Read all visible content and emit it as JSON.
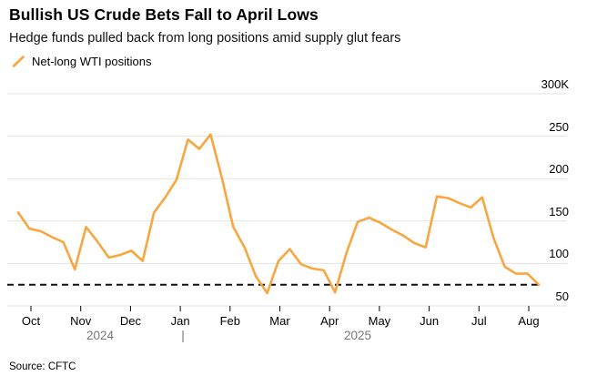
{
  "header": {
    "title": "Bullish US Crude Bets Fall to April Lows",
    "subtitle": "Hedge funds pulled back from long positions amid supply glut fears"
  },
  "legend": {
    "label": "Net-long WTI positions",
    "marker_color": "#F7A640"
  },
  "source": "Source: CFTC",
  "chart_data": {
    "type": "line",
    "title": "Bullish US Crude Bets Fall to April Lows",
    "subtitle": "Hedge funds pulled back from long positions amid supply glut fears",
    "x_tick_labels": [
      "Oct",
      "Nov",
      "Dec",
      "Jan",
      "Feb",
      "Mar",
      "Apr",
      "May",
      "Jun",
      "Jul",
      "Aug"
    ],
    "years": [
      "2024",
      "2025"
    ],
    "year_separator": "|",
    "y_ticks": [
      {
        "value": 300,
        "label": "300K"
      },
      {
        "value": 250,
        "label": "250"
      },
      {
        "value": 200,
        "label": "200"
      },
      {
        "value": 150,
        "label": "150"
      },
      {
        "value": 100,
        "label": "100"
      },
      {
        "value": 50,
        "label": "50"
      }
    ],
    "ylim": [
      50,
      300
    ],
    "grid": true,
    "legend_position": "top-left",
    "series": [
      {
        "name": "Net-long WTI positions",
        "color": "#F7A640",
        "cadence": "weekly",
        "values": [
          160,
          141,
          138,
          131,
          125,
          93,
          143,
          126,
          107,
          110,
          115,
          103,
          160,
          178,
          199,
          246,
          235,
          252,
          201,
          143,
          119,
          85,
          65,
          103,
          117,
          99,
          94,
          92,
          66,
          112,
          149,
          154,
          148,
          140,
          133,
          124,
          119,
          179,
          177,
          171,
          166,
          178,
          130,
          96,
          88,
          88,
          75
        ]
      }
    ],
    "reference_line": {
      "style": "dashed",
      "value": 75,
      "color": "#111111"
    }
  }
}
